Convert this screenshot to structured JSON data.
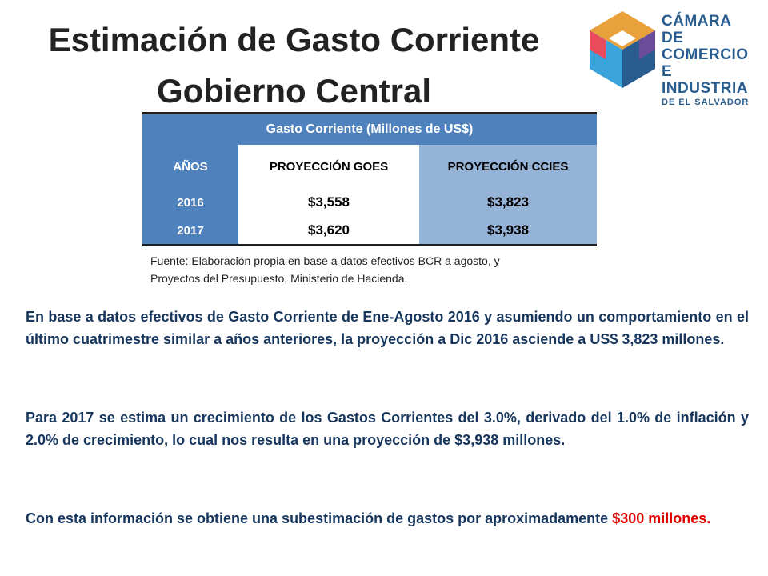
{
  "title": {
    "line1": "Estimación de Gasto Corriente",
    "line2": "Gobierno Central"
  },
  "logo": {
    "line1": "CÁMARA DE",
    "line2": "COMERCIO",
    "line3": "E INDUSTRIA",
    "line4": "DE EL SALVADOR"
  },
  "table": {
    "caption": "Gasto Corriente (Millones de US$)",
    "headers": [
      "AÑOS",
      "PROYECCIÓN GOES",
      "PROYECCIÓN CCIES"
    ],
    "rows": [
      [
        "2016",
        "$3,558",
        "$3,823"
      ],
      [
        "2017",
        "$3,620",
        "$3,938"
      ]
    ]
  },
  "source": {
    "line1": "Fuente: Elaboración propia en base a datos efectivos BCR a agosto, y",
    "line2": "Proyectos del Presupuesto, Ministerio de Hacienda."
  },
  "paragraphs": {
    "p1": "En base a datos efectivos de Gasto Corriente de Ene-Agosto 2016 y asumiendo un comportamiento en el último cuatrimestre similar a años anteriores, la proyección a Dic 2016 asciende a US$ 3,823 millones.",
    "p2": "Para 2017 se estima un crecimiento de los Gastos Corrientes del 3.0%, derivado del 1.0% de inflación y 2.0% de crecimiento, lo cual nos resulta en una proyección de $3,938 millones.",
    "p3_text": "Con esta información se obtiene una subestimación de gastos por aproximadamente",
    "p3_highlight": "$300 millones."
  },
  "colors": {
    "table_blue": "#4f81bd",
    "table_light_blue": "#95b3d7",
    "body_text": "#17365d",
    "highlight": "#e00000"
  }
}
